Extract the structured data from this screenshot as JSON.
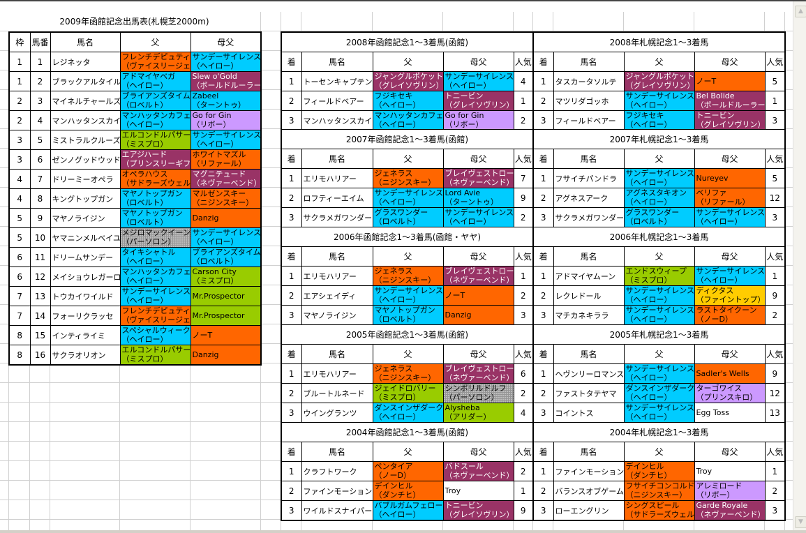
{
  "colors": {
    "o": "#FF6600",
    "cy": "#00CCFF",
    "p": "#993366",
    "g": "#99CC00",
    "l": "#CC99FF",
    "s": "#969696",
    "y": "#FFCC00",
    "w": "#FFFFFF"
  },
  "entry_table": {
    "title": "2009年函館記念出馬表(札幌芝2000m)",
    "headers": [
      "枠",
      "馬番",
      "馬名",
      "父",
      "母父"
    ],
    "rows": [
      {
        "waku": "1",
        "num": "1",
        "name": "レジネッタ",
        "sire": "フレンチデピュティ\n（ヴァイスリージェ）",
        "sire_c": "o",
        "dam_sire": "サンデーサイレンス\n（ヘイロー）",
        "dam_sire_c": "cy"
      },
      {
        "waku": "1",
        "num": "2",
        "name": "ブラックアルタイル",
        "sire": "アドマイヤベガ\n（ヘイロー）",
        "sire_c": "cy",
        "dam_sire": "Slew o'Gold\n（ボールドルーラー）",
        "dam_sire_c": "p"
      },
      {
        "waku": "2",
        "num": "3",
        "name": "マイネルチャールズ",
        "sire": "ブライアンズタイム\n（ロベルト）",
        "sire_c": "cy",
        "dam_sire": "Zabeel\n（ターントゥ）",
        "dam_sire_c": "cy"
      },
      {
        "waku": "2",
        "num": "4",
        "name": "マンハッタンスカイ",
        "sire": "マンハッタンカフェ\n（ヘイロー）",
        "sire_c": "cy",
        "dam_sire": "Go for Gin\n（リボー）",
        "dam_sire_c": "l"
      },
      {
        "waku": "3",
        "num": "5",
        "name": "ミストラルクルーズ",
        "sire": "エルコンドルパサー\n（ミスプロ）",
        "sire_c": "g",
        "dam_sire": "サンデーサイレンス\n（ヘイロー）",
        "dam_sire_c": "cy"
      },
      {
        "waku": "3",
        "num": "6",
        "name": "ゼンノグッドウッド",
        "sire": "エアジハード\n（プリンスリーギフ）",
        "sire_c": "p",
        "dam_sire": "ホワイトマズル\n（リファール）",
        "dam_sire_c": "o"
      },
      {
        "waku": "4",
        "num": "7",
        "name": "ドリーミーオペラ",
        "sire": "オペラハウス\n（サドラーズウェル）",
        "sire_c": "o",
        "dam_sire": "マグニテュード\n（ネヴァーベンド）",
        "dam_sire_c": "p"
      },
      {
        "waku": "4",
        "num": "8",
        "name": "キングトップガン",
        "sire": "マヤノトップガン\n（ロベルト）",
        "sire_c": "cy",
        "dam_sire": "マルゼンスキー\n（ニジンスキー）",
        "dam_sire_c": "o"
      },
      {
        "waku": "5",
        "num": "9",
        "name": "マヤノライジン",
        "sire": "マヤノトップガン\n（ロベルト）",
        "sire_c": "cy",
        "dam_sire": "Danzig",
        "dam_sire_c": "o"
      },
      {
        "waku": "5",
        "num": "10",
        "name": "ヤマニンメルベイユ",
        "sire": "メジロマックイーン\n（パーソロン）",
        "sire_c": "s",
        "dam_sire": "サンデーサイレンス\n（ヘイロー）",
        "dam_sire_c": "cy"
      },
      {
        "waku": "6",
        "num": "11",
        "name": "ドリームサンデー",
        "sire": "タイキシャトル\n（ヘイロー）",
        "sire_c": "cy",
        "dam_sire": "ブライアンズタイム\n（ロベルト）",
        "dam_sire_c": "cy"
      },
      {
        "waku": "6",
        "num": "12",
        "name": "メイショウレガーロ",
        "sire": "マンハッタンカフェ\n（ヘイロー）",
        "sire_c": "cy",
        "dam_sire": "Carson City\n（ミスプロ）",
        "dam_sire_c": "g"
      },
      {
        "waku": "7",
        "num": "13",
        "name": "トウカイワイルド",
        "sire": "サンデーサイレンス\n（ヘイロー）",
        "sire_c": "cy",
        "dam_sire": "Mr.Prospector",
        "dam_sire_c": "g"
      },
      {
        "waku": "7",
        "num": "14",
        "name": "フォーリクラッセ",
        "sire": "フレンチデピュティ\n（ヴァイスリージェ）",
        "sire_c": "o",
        "dam_sire": "Mr.Prospector",
        "dam_sire_c": "g"
      },
      {
        "waku": "8",
        "num": "15",
        "name": "インティライミ",
        "sire": "スペシャルウィーク\n（ヘイロー）",
        "sire_c": "cy",
        "dam_sire": "ノーT",
        "dam_sire_c": "o"
      },
      {
        "waku": "8",
        "num": "16",
        "name": "サクラオリオン",
        "sire": "エルコンドルパサー\n（ミスプロ）",
        "sire_c": "g",
        "dam_sire": "Danzig",
        "dam_sire_c": "o"
      }
    ]
  },
  "result_headers": [
    "着",
    "馬名",
    "父",
    "母父",
    "人気"
  ],
  "hakodate_results": [
    {
      "title": "2008年函館記念1～3着馬(函館)",
      "rows": [
        {
          "pos": "1",
          "name": "トーセンキャプテン",
          "sire": "ジャングルポケット\n（グレイソヴリン）",
          "sire_c": "p",
          "dam_sire": "サンデーサイレンス\n（ヘイロー）",
          "dam_sire_c": "cy",
          "pop": "4"
        },
        {
          "pos": "2",
          "name": "フィールドベアー",
          "sire": "フジキセキ\n（ヘイロー）",
          "sire_c": "cy",
          "dam_sire": "トニービン\n（グレイソヴリン）",
          "dam_sire_c": "p",
          "pop": "1"
        },
        {
          "pos": "3",
          "name": "マンハッタンスカイ",
          "sire": "マンハッタンカフェ\n（ヘイロー）",
          "sire_c": "cy",
          "dam_sire": "Go for Gin\n（リボー）",
          "dam_sire_c": "l",
          "pop": "2"
        }
      ]
    },
    {
      "title": "2007年函館記念1～3着馬(函館)",
      "rows": [
        {
          "pos": "1",
          "name": "エリモハリアー",
          "sire": "ジェネラス\n（ニジンスキー）",
          "sire_c": "o",
          "dam_sire": "ブレイヴェストロー\n（ネヴァーベンド）",
          "dam_sire_c": "p",
          "pop": "7"
        },
        {
          "pos": "2",
          "name": "ロフティーエイム",
          "sire": "サンデーサイレンス\n（ヘイロー）",
          "sire_c": "cy",
          "dam_sire": "Lord Avie\n（ターントゥ）",
          "dam_sire_c": "cy",
          "pop": "9"
        },
        {
          "pos": "3",
          "name": "サクラメガワンダー",
          "sire": "グラスワンダー\n（ロベルト）",
          "sire_c": "cy",
          "dam_sire": "サンデーサイレンス\n（ヘイロー）",
          "dam_sire_c": "cy",
          "pop": "2"
        }
      ]
    },
    {
      "title": "2006年函館記念1～3着馬(函館・ヤヤ)",
      "rows": [
        {
          "pos": "1",
          "name": "エリモハリアー",
          "sire": "ジェネラス\n（ニジンスキー）",
          "sire_c": "o",
          "dam_sire": "ブレイヴェストロー\n（ネヴァーベンド）",
          "dam_sire_c": "p",
          "pop": "1"
        },
        {
          "pos": "2",
          "name": "エアシェイディ",
          "sire": "サンデーサイレンス\n（ヘイロー）",
          "sire_c": "cy",
          "dam_sire": "ノーT",
          "dam_sire_c": "o",
          "pop": "2"
        },
        {
          "pos": "3",
          "name": "マヤノライジン",
          "sire": "マヤノトップガン\n（ロベルト）",
          "sire_c": "cy",
          "dam_sire": "Danzig",
          "dam_sire_c": "o",
          "pop": "3"
        }
      ]
    },
    {
      "title": "2005年函館記念1～3着馬(函館)",
      "rows": [
        {
          "pos": "1",
          "name": "エリモハリアー",
          "sire": "ジェネラス\n（ニジンスキー）",
          "sire_c": "o",
          "dam_sire": "ブレイヴェストロー\n（ネヴァーベンド）",
          "dam_sire_c": "p",
          "pop": "6"
        },
        {
          "pos": "2",
          "name": "ブルートルネード",
          "sire": "ジェイドロバリー\n（ミスプロ）",
          "sire_c": "g",
          "dam_sire": "シンボリルドルフ\n（パーソロン）",
          "dam_sire_c": "s",
          "pop": "2"
        },
        {
          "pos": "3",
          "name": "ウイングランツ",
          "sire": "ダンスインザダーク\n（ヘイロー）",
          "sire_c": "cy",
          "dam_sire": "Alysheba\n（アリダー）",
          "dam_sire_c": "g",
          "pop": "4"
        }
      ]
    },
    {
      "title": "2004年函館記念1～3着馬(函館)",
      "rows": [
        {
          "pos": "1",
          "name": "クラフトワーク",
          "sire": "ペンタイア\n（ノーD）",
          "sire_c": "o",
          "dam_sire": "バドスール\n（ネヴァーベンド）",
          "dam_sire_c": "p",
          "pop": "2"
        },
        {
          "pos": "2",
          "name": "ファインモーション",
          "sire": "デインヒル\n（ダンチヒ）",
          "sire_c": "o",
          "dam_sire": "Troy",
          "dam_sire_c": "w",
          "pop": "1"
        },
        {
          "pos": "3",
          "name": "ワイルドスナイパー",
          "sire": "バブルガムフェロー\n（ヘイロー）",
          "sire_c": "cy",
          "dam_sire": "トニービン\n（グレイソヴリン）",
          "dam_sire_c": "p",
          "pop": "9"
        }
      ]
    }
  ],
  "sapporo_results": [
    {
      "title": "2008年札幌記念1～3着馬",
      "rows": [
        {
          "pos": "1",
          "name": "タスカータソルテ",
          "sire": "ジャングルポケット\n（グレイソヴリン）",
          "sire_c": "p",
          "dam_sire": "ノーT",
          "dam_sire_c": "o",
          "pop": "5"
        },
        {
          "pos": "2",
          "name": "マツリダゴッホ",
          "sire": "サンデーサイレンス\n（ヘイロー）",
          "sire_c": "cy",
          "dam_sire": "Bel Bolide\n（ボールドルーラー）",
          "dam_sire_c": "p",
          "pop": "1"
        },
        {
          "pos": "3",
          "name": "フィールドベアー",
          "sire": "フジキセキ\n（ヘイロー）",
          "sire_c": "cy",
          "dam_sire": "トニービン\n（グレイソヴリン）",
          "dam_sire_c": "p",
          "pop": "3"
        }
      ]
    },
    {
      "title": "2007年札幌記念1～3着馬",
      "rows": [
        {
          "pos": "1",
          "name": "フサイチパンドラ",
          "sire": "サンデーサイレンス\n（ヘイロー）",
          "sire_c": "cy",
          "dam_sire": "Nureyev",
          "dam_sire_c": "o",
          "pop": "5"
        },
        {
          "pos": "2",
          "name": "アグネスアーク",
          "sire": "アグネスタキオン\n（ヘイロー）",
          "sire_c": "cy",
          "dam_sire": "ベリファ\n（リファール）",
          "dam_sire_c": "o",
          "pop": "12"
        },
        {
          "pos": "3",
          "name": "サクラメガワンダー",
          "sire": "グラスワンダー\n（ロベルト）",
          "sire_c": "cy",
          "dam_sire": "サンデーサイレンス\n（ヘイロー）",
          "dam_sire_c": "cy",
          "pop": "3"
        }
      ]
    },
    {
      "title": "2006年札幌記念1～3着馬",
      "rows": [
        {
          "pos": "1",
          "name": "アドマイヤムーン",
          "sire": "エンドスウィープ\n（ミスプロ）",
          "sire_c": "g",
          "dam_sire": "サンデーサイレンス\n（ヘイロー）",
          "dam_sire_c": "cy",
          "pop": "1"
        },
        {
          "pos": "2",
          "name": "レクレドール",
          "sire": "サンデーサイレンス\n（ヘイロー）",
          "sire_c": "cy",
          "dam_sire": "ディクタス\n（ファイントップ）",
          "dam_sire_c": "y",
          "pop": "9"
        },
        {
          "pos": "3",
          "name": "マチカネキララ",
          "sire": "サンデーサイレンス\n（ヘイロー）",
          "sire_c": "cy",
          "dam_sire": "ラストタイクーン\n（ノーD）",
          "dam_sire_c": "o",
          "pop": "2"
        }
      ]
    },
    {
      "title": "2005年札幌記念1～3着馬",
      "rows": [
        {
          "pos": "1",
          "name": "ヘヴンリーロマンス",
          "sire": "サンデーサイレンス\n（ヘイロー）",
          "sire_c": "cy",
          "dam_sire": "Sadler's Wells",
          "dam_sire_c": "o",
          "pop": "9"
        },
        {
          "pos": "2",
          "name": "ファストタテヤマ",
          "sire": "ダンスインザダーク\n（ヘイロー）",
          "sire_c": "cy",
          "dam_sire": "ターゴワイス\n（プリンスキロ）",
          "dam_sire_c": "l",
          "pop": "12"
        },
        {
          "pos": "3",
          "name": "コイントス",
          "sire": "サンデーサイレンス\n（ヘイロー）",
          "sire_c": "cy",
          "dam_sire": "Egg Toss",
          "dam_sire_c": "w",
          "pop": "13"
        }
      ]
    },
    {
      "title": "2004年札幌記念1～3着馬",
      "rows": [
        {
          "pos": "1",
          "name": "ファインモーション",
          "sire": "デインヒル\n（ダンチヒ）",
          "sire_c": "o",
          "dam_sire": "Troy",
          "dam_sire_c": "w",
          "pop": "1"
        },
        {
          "pos": "2",
          "name": "バランスオブゲーム",
          "sire": "フサイチコンコルド\n（ニジンスキー）",
          "sire_c": "o",
          "dam_sire": "アレミロード\n（リボー）",
          "dam_sire_c": "l",
          "pop": "2"
        },
        {
          "pos": "3",
          "name": "ローエングリン",
          "sire": "シングスピール\n（サドラーズウェル）",
          "sire_c": "o",
          "dam_sire": "Garde Royale\n（ネヴァーベンド）",
          "dam_sire_c": "p",
          "pop": "3"
        }
      ]
    }
  ]
}
